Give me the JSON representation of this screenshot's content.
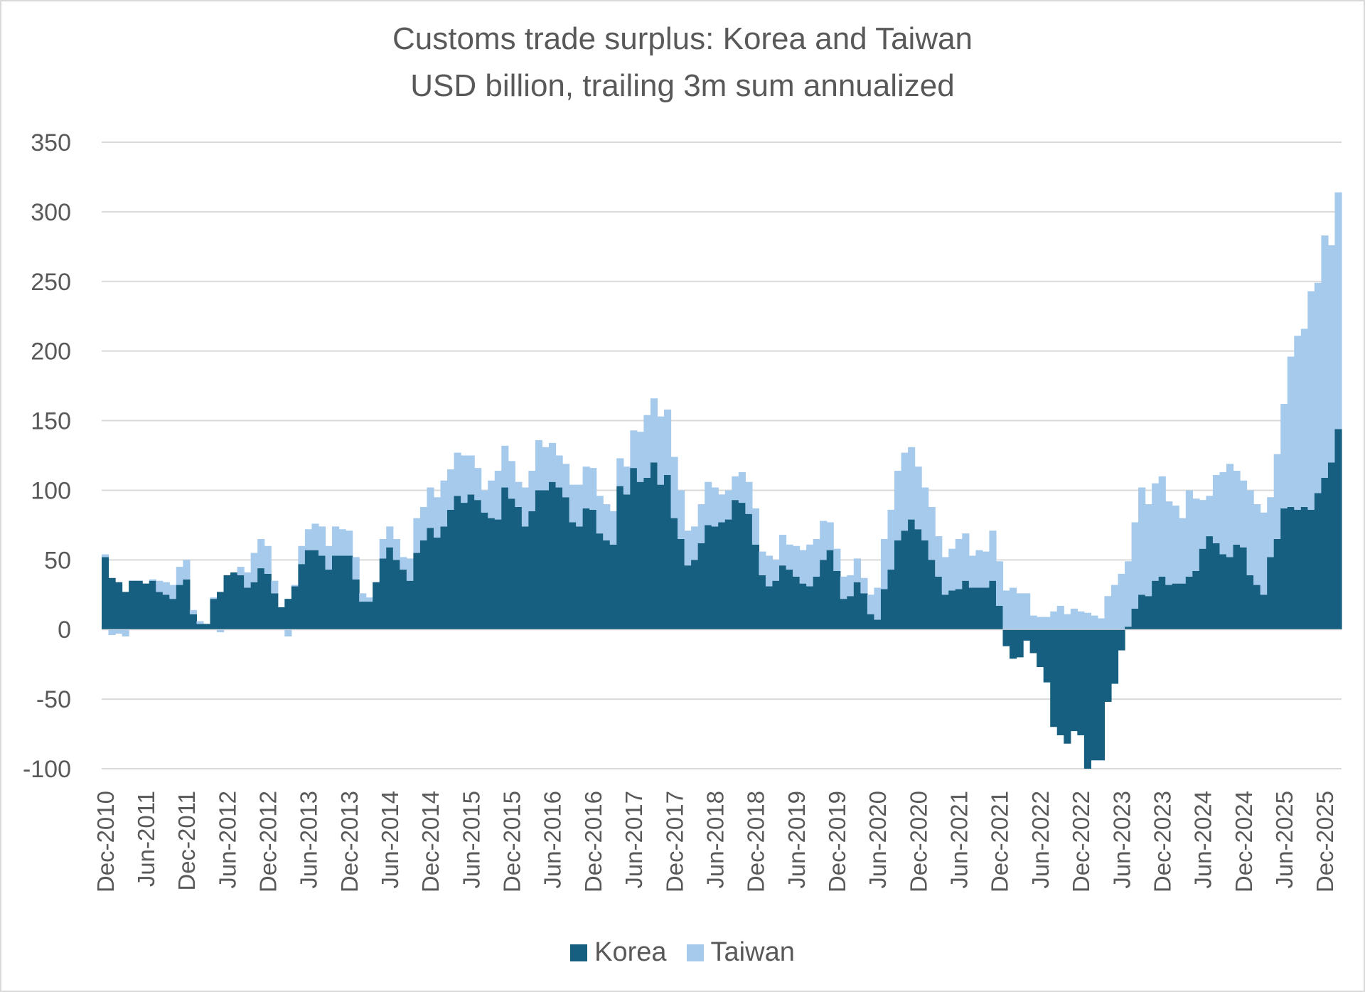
{
  "chart_data": {
    "type": "bar",
    "stacked": true,
    "title": "Customs trade surplus: Korea and Taiwan",
    "subtitle": "USD billion, trailing 3m sum annualized",
    "xlabel": "",
    "ylabel": "",
    "x_start": "Dec-2010",
    "x_frequency": "monthly",
    "x_tick_labels": [
      "Dec-2010",
      "Jun-2011",
      "Dec-2011",
      "Jun-2012",
      "Dec-2012",
      "Jun-2013",
      "Dec-2013",
      "Jun-2014",
      "Dec-2014",
      "Jun-2015",
      "Dec-2015",
      "Jun-2016",
      "Dec-2016",
      "Jun-2017",
      "Dec-2017",
      "Jun-2018",
      "Dec-2018",
      "Jun-2019",
      "Dec-2019",
      "Jun-2020",
      "Dec-2020",
      "Jun-2021",
      "Dec-2021",
      "Jun-2022",
      "Dec-2022",
      "Jun-2023",
      "Dec-2023",
      "Jun-2024",
      "Dec-2024",
      "Jun-2025",
      "Dec-2025"
    ],
    "y_tick_labels": [
      "350",
      "300",
      "250",
      "200",
      "150",
      "100",
      "50",
      "0",
      "-50",
      "-100"
    ],
    "ylim": [
      -100,
      350
    ],
    "y_ticks": [
      350,
      300,
      250,
      200,
      150,
      100,
      50,
      0,
      -50,
      -100
    ],
    "grid": true,
    "legend_position": "bottom",
    "series": [
      {
        "name": "Korea",
        "color": "#165f80",
        "values": [
          52,
          37,
          34,
          27,
          35,
          35,
          33,
          35,
          27,
          25,
          22,
          32,
          36,
          11,
          4,
          4,
          22,
          27,
          39,
          41,
          39,
          30,
          34,
          44,
          40,
          26,
          16,
          22,
          31,
          47,
          57,
          57,
          53,
          43,
          53,
          53,
          53,
          36,
          20,
          20,
          34,
          51,
          59,
          50,
          43,
          35,
          55,
          64,
          73,
          66,
          74,
          86,
          96,
          91,
          97,
          93,
          84,
          80,
          79,
          102,
          94,
          88,
          74,
          85,
          100,
          100,
          106,
          102,
          95,
          77,
          74,
          87,
          86,
          69,
          64,
          61,
          103,
          97,
          116,
          106,
          109,
          120,
          104,
          111,
          80,
          65,
          46,
          50,
          62,
          75,
          74,
          77,
          79,
          93,
          91,
          83,
          61,
          39,
          31,
          35,
          46,
          43,
          38,
          33,
          31,
          38,
          50,
          57,
          42,
          22,
          24,
          34,
          26,
          11,
          7,
          29,
          43,
          64,
          71,
          79,
          72,
          64,
          50,
          38,
          25,
          28,
          29,
          35,
          30,
          30,
          30,
          35,
          17,
          -12,
          -21,
          -20,
          -8,
          -17,
          -27,
          -38,
          -70,
          -76,
          -82,
          -73,
          -76,
          -100,
          -94,
          -94,
          -52,
          -39,
          -15,
          2,
          15,
          25,
          24,
          35,
          38,
          32,
          33,
          33,
          38,
          42,
          58,
          67,
          62,
          54,
          52,
          61,
          59,
          39,
          32,
          25,
          52,
          65,
          87,
          88,
          86,
          88,
          86,
          98,
          109,
          120,
          144
        ]
      },
      {
        "name": "Taiwan",
        "color": "#a6caec",
        "values": [
          2,
          -4,
          -3,
          -5,
          0,
          0,
          0,
          1,
          8,
          9,
          10,
          13,
          14,
          3,
          2,
          0,
          1,
          -2,
          0,
          0,
          6,
          11,
          21,
          21,
          20,
          9,
          0,
          -5,
          1,
          13,
          15,
          19,
          21,
          17,
          21,
          19,
          18,
          16,
          6,
          3,
          0,
          14,
          15,
          15,
          9,
          16,
          25,
          24,
          29,
          29,
          33,
          29,
          31,
          34,
          28,
          23,
          16,
          27,
          35,
          30,
          27,
          18,
          28,
          29,
          36,
          31,
          28,
          23,
          24,
          27,
          30,
          30,
          30,
          27,
          26,
          24,
          20,
          20,
          27,
          36,
          45,
          46,
          49,
          47,
          44,
          35,
          25,
          24,
          28,
          31,
          28,
          20,
          21,
          17,
          22,
          23,
          26,
          17,
          22,
          15,
          22,
          18,
          22,
          24,
          30,
          27,
          28,
          20,
          16,
          16,
          15,
          17,
          11,
          14,
          23,
          36,
          43,
          50,
          56,
          52,
          45,
          38,
          38,
          29,
          27,
          30,
          36,
          34,
          23,
          27,
          26,
          36,
          32,
          28,
          30,
          26,
          26,
          10,
          9,
          9,
          13,
          17,
          11,
          15,
          13,
          12,
          10,
          8,
          24,
          32,
          40,
          47,
          62,
          77,
          66,
          70,
          72,
          60,
          56,
          47,
          62,
          52,
          35,
          29,
          49,
          59,
          67,
          53,
          48,
          61,
          58,
          59,
          43,
          61,
          75,
          108,
          125,
          128,
          157,
          151,
          174,
          156,
          170
        ]
      }
    ]
  }
}
